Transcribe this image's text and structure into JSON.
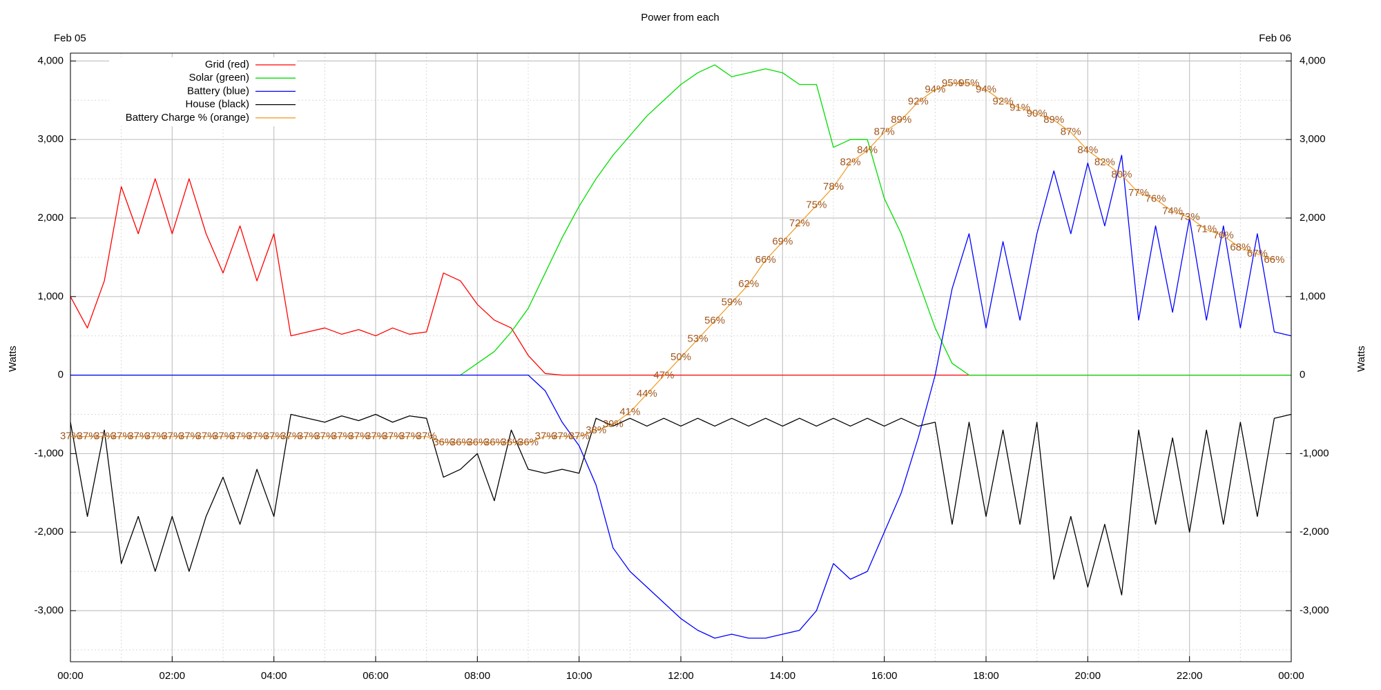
{
  "chart_data": {
    "type": "line",
    "title": "Power from each",
    "date_left": "Feb 05",
    "date_right": "Feb 06",
    "ylabel": "Watts",
    "legend": "upper left",
    "grid": true,
    "xlim": [
      0,
      1440
    ],
    "xticks": [
      {
        "value": 0,
        "label": "00:00"
      },
      {
        "value": 120,
        "label": "02:00"
      },
      {
        "value": 240,
        "label": "04:00"
      },
      {
        "value": 360,
        "label": "06:00"
      },
      {
        "value": 480,
        "label": "08:00"
      },
      {
        "value": 600,
        "label": "10:00"
      },
      {
        "value": 720,
        "label": "12:00"
      },
      {
        "value": 840,
        "label": "14:00"
      },
      {
        "value": 960,
        "label": "16:00"
      },
      {
        "value": 1080,
        "label": "18:00"
      },
      {
        "value": 1200,
        "label": "20:00"
      },
      {
        "value": 1320,
        "label": "22:00"
      },
      {
        "value": 1440,
        "label": "00:00"
      }
    ],
    "ylim": [
      -3650,
      4100
    ],
    "yticks": [
      {
        "value": -3000,
        "label": "-3,000"
      },
      {
        "value": -2000,
        "label": "-2,000"
      },
      {
        "value": -1000,
        "label": "-1,000"
      },
      0,
      {
        "value": 1000,
        "label": "1,000"
      },
      {
        "value": 2000,
        "label": "2,000"
      },
      {
        "value": 3000,
        "label": "3,000"
      },
      {
        "value": 4000,
        "label": "4,000"
      }
    ],
    "y2lim": [
      0,
      100
    ],
    "x": [
      0,
      20,
      40,
      60,
      80,
      100,
      120,
      140,
      160,
      180,
      200,
      220,
      240,
      260,
      280,
      300,
      320,
      340,
      360,
      380,
      400,
      420,
      440,
      460,
      480,
      500,
      520,
      540,
      560,
      580,
      600,
      620,
      640,
      660,
      680,
      700,
      720,
      740,
      760,
      780,
      800,
      820,
      840,
      860,
      880,
      900,
      920,
      940,
      960,
      980,
      1000,
      1020,
      1040,
      1060,
      1080,
      1100,
      1120,
      1140,
      1160,
      1180,
      1200,
      1220,
      1240,
      1260,
      1280,
      1300,
      1320,
      1340,
      1360,
      1380,
      1400,
      1420,
      1440
    ],
    "series": [
      {
        "name": "Grid (red)",
        "color": "#ff0000",
        "values": [
          1000,
          600,
          1200,
          2400,
          1800,
          2500,
          1800,
          2500,
          1800,
          1300,
          1900,
          1200,
          1800,
          500,
          550,
          600,
          520,
          580,
          500,
          600,
          520,
          550,
          1300,
          1200,
          900,
          700,
          600,
          250,
          20,
          0,
          0,
          0,
          0,
          0,
          0,
          0,
          0,
          0,
          0,
          0,
          0,
          0,
          0,
          0,
          0,
          0,
          0,
          0,
          0,
          0,
          0,
          0,
          0,
          0,
          0,
          0,
          0,
          0,
          0,
          0,
          0,
          0,
          0,
          0,
          0,
          0,
          0,
          0,
          0,
          0,
          0,
          0,
          0
        ]
      },
      {
        "name": "Solar (green)",
        "color": "#00dd00",
        "values": [
          0,
          0,
          0,
          0,
          0,
          0,
          0,
          0,
          0,
          0,
          0,
          0,
          0,
          0,
          0,
          0,
          0,
          0,
          0,
          0,
          0,
          0,
          0,
          0,
          150,
          300,
          550,
          850,
          1300,
          1750,
          2150,
          2500,
          2800,
          3050,
          3300,
          3500,
          3700,
          3850,
          3950,
          3800,
          3850,
          3900,
          3850,
          3700,
          3700,
          2900,
          3000,
          3000,
          2250,
          1800,
          1200,
          600,
          150,
          0,
          0,
          0,
          0,
          0,
          0,
          0,
          0,
          0,
          0,
          0,
          0,
          0,
          0,
          0,
          0,
          0,
          0,
          0,
          0
        ]
      },
      {
        "name": "Battery (blue)",
        "color": "#0000ff",
        "values": [
          0,
          0,
          0,
          0,
          0,
          0,
          0,
          0,
          0,
          0,
          0,
          0,
          0,
          0,
          0,
          0,
          0,
          0,
          0,
          0,
          0,
          0,
          0,
          0,
          0,
          0,
          0,
          0,
          -200,
          -600,
          -900,
          -1400,
          -2200,
          -2500,
          -2700,
          -2900,
          -3100,
          -3250,
          -3350,
          -3300,
          -3350,
          -3350,
          -3300,
          -3250,
          -3000,
          -2400,
          -2600,
          -2500,
          -2000,
          -1500,
          -800,
          0,
          1100,
          1800,
          600,
          1700,
          700,
          1800,
          2600,
          1800,
          2700,
          1900,
          2800,
          700,
          1900,
          800,
          2000,
          700,
          1900,
          600,
          1800,
          550,
          500
        ]
      },
      {
        "name": "House (black)",
        "color": "#000000",
        "values": [
          -600,
          -1800,
          -700,
          -2400,
          -1800,
          -2500,
          -1800,
          -2500,
          -1800,
          -1300,
          -1900,
          -1200,
          -1800,
          -500,
          -550,
          -600,
          -520,
          -580,
          -500,
          -600,
          -520,
          -550,
          -1300,
          -1200,
          -1000,
          -1600,
          -700,
          -1200,
          -1250,
          -1200,
          -1250,
          -550,
          -650,
          -550,
          -650,
          -550,
          -650,
          -550,
          -650,
          -550,
          -650,
          -550,
          -650,
          -550,
          -650,
          -550,
          -650,
          -550,
          -650,
          -550,
          -650,
          -600,
          -1900,
          -600,
          -1800,
          -700,
          -1900,
          -600,
          -2600,
          -1800,
          -2700,
          -1900,
          -2800,
          -700,
          -1900,
          -800,
          -2000,
          -700,
          -1900,
          -600,
          -1800,
          -550,
          -500
        ]
      },
      {
        "name": "Battery Charge % (orange)",
        "color": "#f0a030",
        "label_color": "#a0561e",
        "axis": "y2",
        "values": [
          37,
          37,
          37,
          37,
          37,
          37,
          37,
          37,
          37,
          37,
          37,
          37,
          37,
          37,
          37,
          37,
          37,
          37,
          37,
          37,
          37,
          37,
          36,
          36,
          36,
          36,
          36,
          36,
          37,
          37,
          37,
          38,
          39,
          41,
          44,
          47,
          50,
          53,
          56,
          59,
          62,
          66,
          69,
          72,
          75,
          78,
          82,
          84,
          87,
          89,
          92,
          94,
          95,
          95,
          94,
          92,
          91,
          90,
          89,
          87,
          84,
          82,
          80,
          77,
          76,
          74,
          73,
          71,
          70,
          68,
          67,
          66,
          null
        ],
        "value_labels": [
          "37%",
          "37%",
          "37%",
          "37%",
          "37%",
          "37%",
          "37%",
          "37%",
          "37%",
          "37%",
          "37%",
          "37%",
          "37%",
          "37%",
          "37%",
          "37%",
          "37%",
          "37%",
          "37%",
          "37%",
          "37%",
          "37%",
          "36%",
          "36%",
          "36%",
          "36%",
          "36%",
          "36%",
          "37%",
          "37%",
          "37%",
          "38%",
          "39%",
          "41%",
          "44%",
          "47%",
          "50%",
          "53%",
          "56%",
          "59%",
          "62%",
          "66%",
          "69%",
          "72%",
          "75%",
          "78%",
          "82%",
          "84%",
          "87%",
          "89%",
          "92%",
          "94%",
          "95%",
          "95%",
          "94%",
          "92%",
          "91%",
          "90%",
          "89%",
          "87%",
          "84%",
          "82%",
          "80%",
          "77%",
          "76%",
          "74%",
          "73%",
          "71%",
          "70%",
          "68%",
          "67%",
          "66%",
          null
        ]
      }
    ]
  }
}
